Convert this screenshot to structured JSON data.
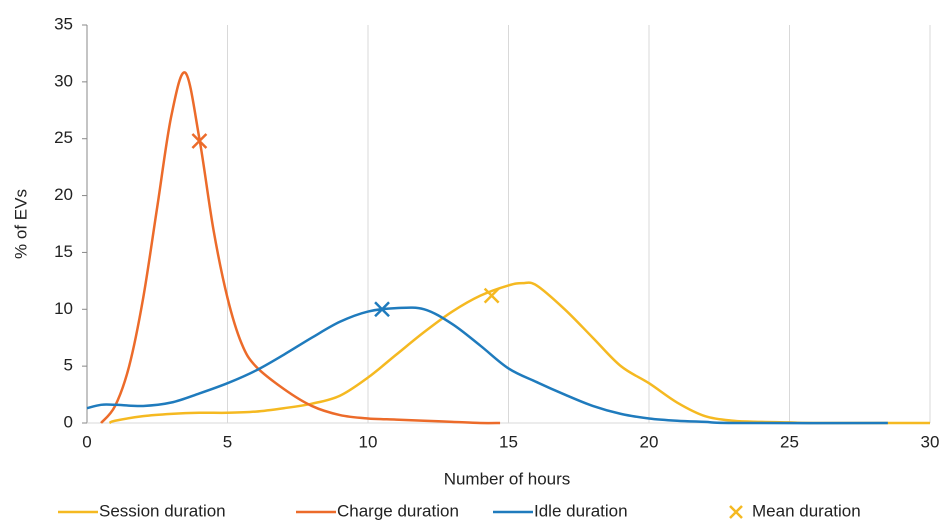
{
  "chart_data": {
    "type": "line",
    "xlabel": "Number of hours",
    "ylabel": "% of EVs",
    "xlim": [
      0,
      30
    ],
    "xticks": [
      0,
      5,
      10,
      15,
      20,
      25,
      30
    ],
    "ylim": [
      0,
      35
    ],
    "yticks": [
      0,
      5,
      10,
      15,
      20,
      25,
      30,
      35
    ],
    "grid": "x",
    "legend": "bottom",
    "smooth": true,
    "series": [
      {
        "name": "Session duration",
        "color": "#f5b921",
        "x": [
          0.8,
          1,
          2,
          3,
          4,
          5,
          6,
          7,
          8,
          9,
          10,
          11,
          12,
          13,
          14,
          15,
          15.5,
          16,
          17,
          18,
          19,
          20,
          21,
          22,
          23,
          24,
          25,
          26,
          30
        ],
        "values": [
          0,
          0.2,
          0.6,
          0.8,
          0.9,
          0.9,
          1.0,
          1.3,
          1.7,
          2.4,
          4,
          6,
          8,
          9.8,
          11.2,
          12.1,
          12.3,
          12.1,
          10,
          7.5,
          5,
          3.5,
          1.8,
          0.6,
          0.2,
          0.1,
          0.05,
          0,
          0
        ]
      },
      {
        "name": "Charge duration",
        "color": "#ec6b2a",
        "x": [
          0.5,
          1,
          1.5,
          2,
          2.5,
          3,
          3.5,
          4,
          4.5,
          5,
          5.5,
          6,
          7,
          8,
          9,
          10,
          11,
          12,
          13,
          14,
          14.7
        ],
        "values": [
          0,
          1.5,
          5,
          11,
          19,
          27,
          30.8,
          25,
          17,
          11,
          7,
          5,
          3,
          1.5,
          0.7,
          0.4,
          0.3,
          0.2,
          0.1,
          0,
          0
        ]
      },
      {
        "name": "Idle duration",
        "color": "#1f7bbd",
        "x": [
          0,
          0.5,
          1,
          2,
          3,
          4,
          5,
          6,
          7,
          8,
          9,
          10,
          11,
          12,
          13,
          14,
          15,
          16,
          17,
          18,
          19,
          20,
          21,
          22,
          23,
          28.5
        ],
        "values": [
          1.3,
          1.6,
          1.6,
          1.5,
          1.8,
          2.6,
          3.5,
          4.6,
          6,
          7.5,
          8.9,
          9.8,
          10.1,
          10,
          8.7,
          6.8,
          4.8,
          3.6,
          2.5,
          1.5,
          0.8,
          0.4,
          0.2,
          0.1,
          0,
          0
        ]
      },
      {
        "name": "Mean duration",
        "color": "#f5b921",
        "marker": "x",
        "colors": [
          "#ec6b2a",
          "#1f7bbd",
          "#f5b921"
        ],
        "x": [
          4,
          10.5,
          14.4
        ],
        "values": [
          24.8,
          10,
          11.2
        ]
      }
    ]
  }
}
